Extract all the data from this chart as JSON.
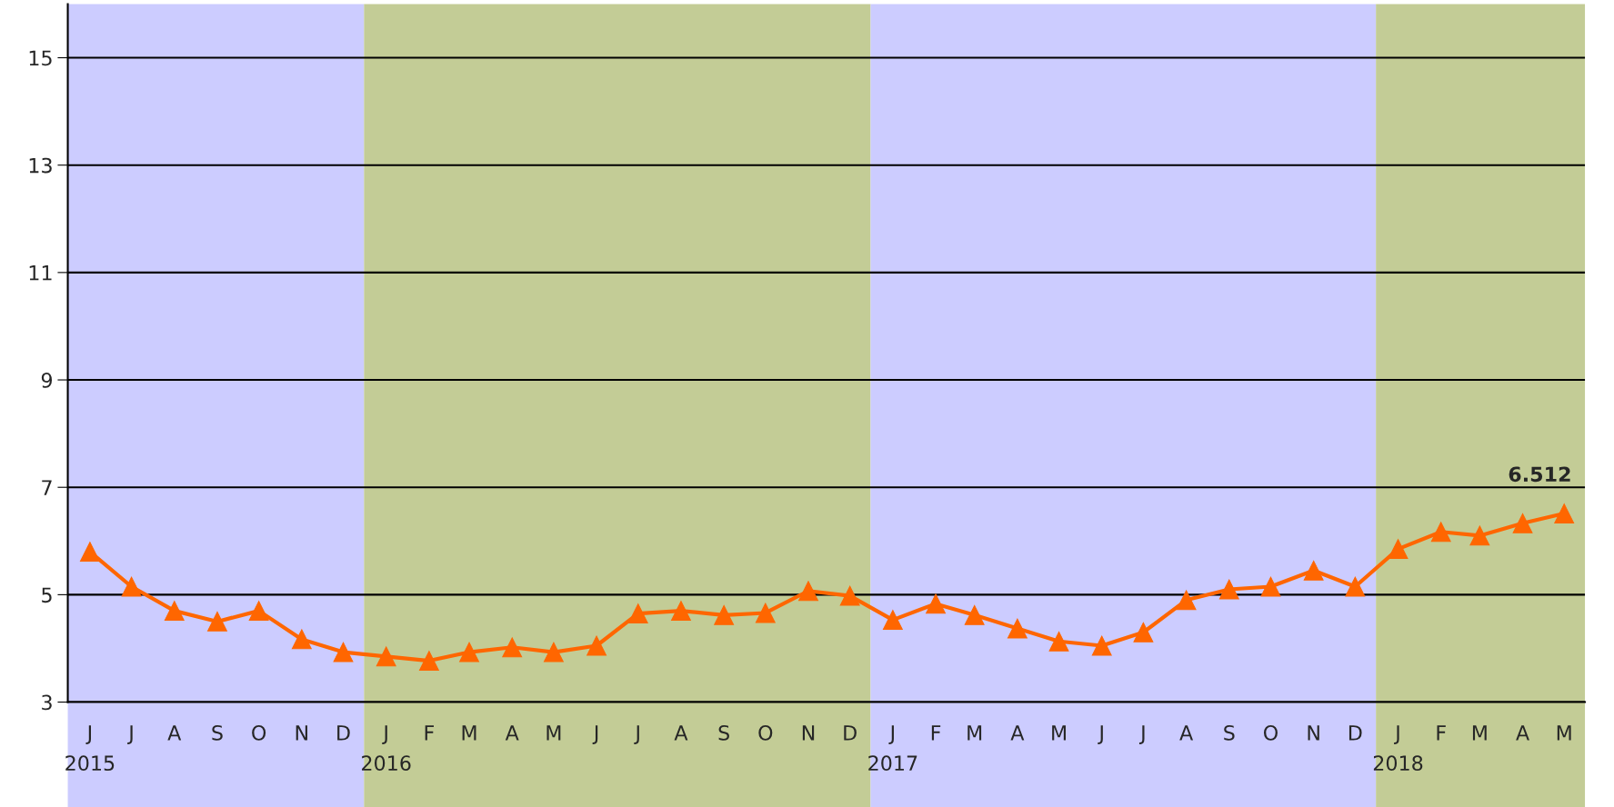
{
  "chart_data": {
    "type": "line",
    "x": [
      "2015-06",
      "2015-07",
      "2015-08",
      "2015-09",
      "2015-10",
      "2015-11",
      "2015-12",
      "2016-01",
      "2016-02",
      "2016-03",
      "2016-04",
      "2016-05",
      "2016-06",
      "2016-07",
      "2016-08",
      "2016-09",
      "2016-10",
      "2016-11",
      "2016-12",
      "2017-01",
      "2017-02",
      "2017-03",
      "2017-04",
      "2017-05",
      "2017-06",
      "2017-07",
      "2017-08",
      "2017-09",
      "2017-10",
      "2017-11",
      "2017-12",
      "2018-01",
      "2018-02",
      "2018-03",
      "2018-04",
      "2018-05"
    ],
    "series": [
      {
        "color": "#ff6600",
        "values": [
          5.8,
          5.15,
          4.7,
          4.5,
          4.7,
          4.17,
          3.93,
          3.85,
          3.77,
          3.93,
          4.02,
          3.93,
          4.05,
          4.65,
          4.7,
          4.62,
          4.66,
          5.07,
          4.98,
          4.53,
          4.83,
          4.62,
          4.37,
          4.13,
          4.05,
          4.3,
          4.9,
          5.1,
          5.15,
          5.45,
          5.15,
          5.85,
          6.17,
          6.1,
          6.33,
          6.512
        ],
        "value_labels": [
          null,
          null,
          null,
          null,
          null,
          null,
          null,
          null,
          null,
          null,
          null,
          null,
          null,
          null,
          null,
          null,
          null,
          null,
          null,
          null,
          null,
          null,
          null,
          null,
          null,
          null,
          null,
          null,
          null,
          null,
          null,
          null,
          null,
          null,
          null,
          "6.512"
        ]
      }
    ],
    "xlim": [
      "2015-05-16",
      "2018-05-16"
    ],
    "xticks": [
      {
        "value": "2015-06",
        "label": "J\n2015"
      },
      {
        "value": "2015-07",
        "label": "J"
      },
      {
        "value": "2015-08",
        "label": "A"
      },
      {
        "value": "2015-09",
        "label": "S"
      },
      {
        "value": "2015-10",
        "label": "O"
      },
      {
        "value": "2015-11",
        "label": "N"
      },
      {
        "value": "2015-12",
        "label": "D"
      },
      {
        "value": "2016-01",
        "label": "J\n2016"
      },
      {
        "value": "2016-02",
        "label": "F"
      },
      {
        "value": "2016-03",
        "label": "M"
      },
      {
        "value": "2016-04",
        "label": "A"
      },
      {
        "value": "2016-05",
        "label": "M"
      },
      {
        "value": "2016-06",
        "label": "J"
      },
      {
        "value": "2016-07",
        "label": "J"
      },
      {
        "value": "2016-08",
        "label": "A"
      },
      {
        "value": "2016-09",
        "label": "S"
      },
      {
        "value": "2016-10",
        "label": "O"
      },
      {
        "value": "2016-11",
        "label": "N"
      },
      {
        "value": "2016-12",
        "label": "D"
      },
      {
        "value": "2017-01",
        "label": "J\n2017"
      },
      {
        "value": "2017-02",
        "label": "F"
      },
      {
        "value": "2017-03",
        "label": "M"
      },
      {
        "value": "2017-04",
        "label": "A"
      },
      {
        "value": "2017-05",
        "label": "M"
      },
      {
        "value": "2017-06",
        "label": "J"
      },
      {
        "value": "2017-07",
        "label": "J"
      },
      {
        "value": "2017-08",
        "label": "A"
      },
      {
        "value": "2017-09",
        "label": "S"
      },
      {
        "value": "2017-10",
        "label": "O"
      },
      {
        "value": "2017-11",
        "label": "N"
      },
      {
        "value": "2017-12",
        "label": "D"
      },
      {
        "value": "2018-01",
        "label": "J\n2018"
      },
      {
        "value": "2018-02",
        "label": "F"
      },
      {
        "value": "2018-03",
        "label": "M"
      },
      {
        "value": "2018-04",
        "label": "A"
      },
      {
        "value": "2018-05",
        "label": "M"
      }
    ],
    "ylim": [
      3,
      16
    ],
    "yticks": [
      3,
      5,
      7,
      9,
      11,
      13,
      15
    ],
    "grid": "y",
    "marker": "triangle",
    "line_style": "solid",
    "legend": false,
    "bands": [
      {
        "axis": "x",
        "from": "2015-05-16",
        "to": "2015-12-16",
        "color": "#ccccff"
      },
      {
        "axis": "x",
        "from": "2015-12-16",
        "to": "2016-12-16",
        "color": "#c3cc96"
      },
      {
        "axis": "x",
        "from": "2016-12-16",
        "to": "2017-12-16",
        "color": "#ccccff"
      },
      {
        "axis": "x",
        "from": "2017-12-16",
        "to": "2018-05-16",
        "color": "#c3cc96"
      }
    ]
  }
}
